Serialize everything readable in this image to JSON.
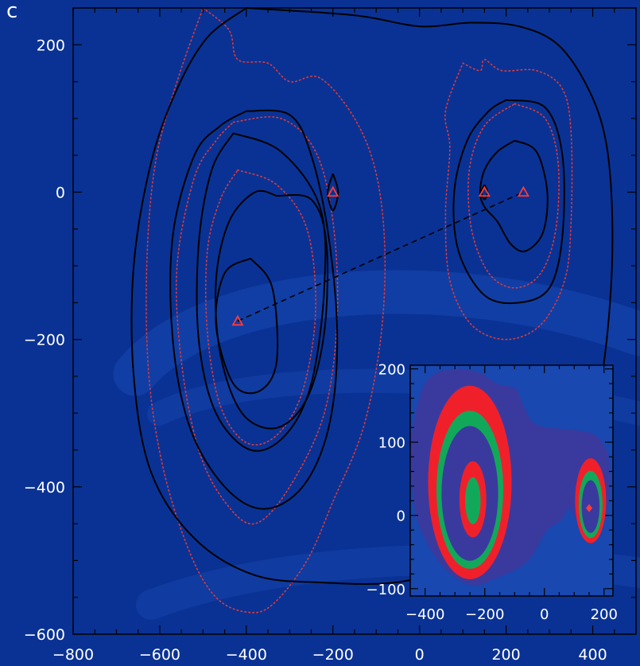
{
  "panel_letter": "c",
  "colors": {
    "background": "#0a3294",
    "swirl": "#1848b0",
    "contour_solid": "#000000",
    "contour_dotted": "#e03a3a",
    "marker": "#ff3b3b",
    "inset_bg": "#1848b0",
    "inset_outer": "#3a3a9e",
    "inset_red": "#f0202a",
    "inset_green": "#12a85a"
  },
  "chart_data": [
    {
      "type": "contour",
      "xlim": [
        -800,
        500
      ],
      "ylim": [
        -600,
        250
      ],
      "x_ticks": [
        -800,
        -600,
        -400,
        -200,
        0,
        200,
        400
      ],
      "y_ticks": [
        -600,
        -400,
        -200,
        0,
        200
      ],
      "x_tick_labels": [
        "−800",
        "−600",
        "−400",
        "−200",
        "0",
        "200",
        "400"
      ],
      "y_tick_labels": [
        "−600",
        "−400",
        "−200",
        "0",
        "200"
      ],
      "markers": [
        {
          "shape": "triangle",
          "x": -420,
          "y": -175
        },
        {
          "shape": "triangle",
          "x": -200,
          "y": 0
        },
        {
          "shape": "triangle",
          "x": 150,
          "y": 0
        },
        {
          "shape": "triangle",
          "x": 240,
          "y": 0
        }
      ],
      "dashed_line": [
        [
          -420,
          -175
        ],
        [
          240,
          0
        ]
      ],
      "solid_contours": [
        [
          [
            -400,
            250
          ],
          [
            -150,
            240
          ],
          [
            0,
            225
          ],
          [
            120,
            230
          ],
          [
            230,
            225
          ],
          [
            320,
            200
          ],
          [
            390,
            140
          ],
          [
            430,
            70
          ],
          [
            445,
            -30
          ],
          [
            440,
            -150
          ],
          [
            415,
            -270
          ],
          [
            370,
            -360
          ],
          [
            300,
            -430
          ],
          [
            200,
            -480
          ],
          [
            90,
            -510
          ],
          [
            -60,
            -530
          ],
          [
            -220,
            -530
          ],
          [
            -380,
            -520
          ],
          [
            -520,
            -470
          ],
          [
            -620,
            -380
          ],
          [
            -660,
            -250
          ],
          [
            -660,
            -100
          ],
          [
            -620,
            40
          ],
          [
            -560,
            140
          ],
          [
            -490,
            210
          ],
          [
            -400,
            250
          ]
        ],
        [
          [
            -400,
            110
          ],
          [
            -300,
            105
          ],
          [
            -250,
            50
          ],
          [
            -210,
            -60
          ],
          [
            -190,
            -200
          ],
          [
            -210,
            -320
          ],
          [
            -270,
            -400
          ],
          [
            -360,
            -430
          ],
          [
            -450,
            -400
          ],
          [
            -530,
            -320
          ],
          [
            -570,
            -200
          ],
          [
            -570,
            -60
          ],
          [
            -520,
            50
          ],
          [
            -460,
            90
          ],
          [
            -400,
            110
          ]
        ],
        [
          [
            -430,
            80
          ],
          [
            -320,
            55
          ],
          [
            -230,
            -20
          ],
          [
            -220,
            -130
          ],
          [
            -250,
            -260
          ],
          [
            -310,
            -330
          ],
          [
            -390,
            -350
          ],
          [
            -470,
            -300
          ],
          [
            -510,
            -200
          ],
          [
            -510,
            -70
          ],
          [
            -480,
            30
          ],
          [
            -430,
            80
          ]
        ],
        [
          [
            -330,
            -5
          ],
          [
            -250,
            -10
          ],
          [
            -215,
            -70
          ],
          [
            -220,
            -190
          ],
          [
            -260,
            -280
          ],
          [
            -330,
            -320
          ],
          [
            -410,
            -300
          ],
          [
            -460,
            -220
          ],
          [
            -470,
            -120
          ],
          [
            -440,
            -40
          ],
          [
            -380,
            0
          ],
          [
            -330,
            -5
          ]
        ],
        [
          [
            -390,
            -90
          ],
          [
            -340,
            -130
          ],
          [
            -330,
            -230
          ],
          [
            -370,
            -270
          ],
          [
            -430,
            -260
          ],
          [
            -470,
            -180
          ],
          [
            -450,
            -110
          ],
          [
            -390,
            -90
          ]
        ],
        [
          [
            -200,
            25
          ],
          [
            -188,
            0
          ],
          [
            -200,
            -25
          ],
          [
            -212,
            0
          ],
          [
            -200,
            25
          ]
        ],
        [
          [
            200,
            125
          ],
          [
            290,
            115
          ],
          [
            330,
            50
          ],
          [
            330,
            -60
          ],
          [
            300,
            -130
          ],
          [
            230,
            -150
          ],
          [
            150,
            -140
          ],
          [
            90,
            -80
          ],
          [
            80,
            0
          ],
          [
            110,
            70
          ],
          [
            160,
            110
          ],
          [
            200,
            125
          ]
        ],
        [
          [
            220,
            70
          ],
          [
            270,
            55
          ],
          [
            295,
            0
          ],
          [
            285,
            -55
          ],
          [
            245,
            -80
          ],
          [
            210,
            -70
          ],
          [
            180,
            -40
          ],
          [
            150,
            -20
          ],
          [
            140,
            0
          ],
          [
            150,
            30
          ],
          [
            180,
            55
          ],
          [
            220,
            70
          ]
        ],
        [
          [
            150,
            10
          ],
          [
            157,
            0
          ],
          [
            150,
            -10
          ],
          [
            143,
            0
          ],
          [
            150,
            10
          ]
        ]
      ],
      "dotted_contours": [
        [
          [
            -500,
            250
          ],
          [
            -440,
            220
          ],
          [
            -420,
            180
          ],
          [
            -350,
            175
          ],
          [
            -300,
            150
          ],
          [
            -230,
            155
          ],
          [
            -150,
            100
          ],
          [
            -100,
            25
          ],
          [
            -80,
            -80
          ],
          [
            -90,
            -200
          ],
          [
            -130,
            -320
          ],
          [
            -200,
            -420
          ],
          [
            -260,
            -500
          ],
          [
            -340,
            -560
          ],
          [
            -400,
            -570
          ],
          [
            -470,
            -550
          ],
          [
            -530,
            -490
          ],
          [
            -590,
            -380
          ],
          [
            -625,
            -250
          ],
          [
            -630,
            -100
          ],
          [
            -610,
            40
          ],
          [
            -560,
            150
          ],
          [
            -500,
            250
          ]
        ],
        [
          [
            -430,
            95
          ],
          [
            -320,
            100
          ],
          [
            -240,
            55
          ],
          [
            -200,
            -40
          ],
          [
            -190,
            -170
          ],
          [
            -220,
            -300
          ],
          [
            -300,
            -400
          ],
          [
            -380,
            -450
          ],
          [
            -450,
            -420
          ],
          [
            -510,
            -350
          ],
          [
            -550,
            -230
          ],
          [
            -560,
            -100
          ],
          [
            -520,
            20
          ],
          [
            -470,
            70
          ],
          [
            -430,
            95
          ]
        ],
        [
          [
            -420,
            30
          ],
          [
            -330,
            10
          ],
          [
            -260,
            -50
          ],
          [
            -240,
            -160
          ],
          [
            -270,
            -270
          ],
          [
            -330,
            -330
          ],
          [
            -400,
            -340
          ],
          [
            -460,
            -290
          ],
          [
            -490,
            -190
          ],
          [
            -490,
            -80
          ],
          [
            -460,
            -10
          ],
          [
            -420,
            30
          ]
        ],
        [
          [
            100,
            175
          ],
          [
            140,
            165
          ],
          [
            150,
            180
          ],
          [
            190,
            165
          ],
          [
            270,
            165
          ],
          [
            330,
            140
          ],
          [
            350,
            80
          ],
          [
            350,
            -40
          ],
          [
            335,
            -120
          ],
          [
            280,
            -180
          ],
          [
            200,
            -200
          ],
          [
            120,
            -180
          ],
          [
            70,
            -120
          ],
          [
            60,
            -30
          ],
          [
            70,
            60
          ],
          [
            60,
            110
          ],
          [
            100,
            175
          ]
        ],
        [
          [
            220,
            120
          ],
          [
            290,
            100
          ],
          [
            320,
            40
          ],
          [
            315,
            -50
          ],
          [
            280,
            -110
          ],
          [
            220,
            -130
          ],
          [
            160,
            -110
          ],
          [
            120,
            -50
          ],
          [
            115,
            30
          ],
          [
            150,
            90
          ],
          [
            220,
            120
          ]
        ]
      ]
    },
    {
      "type": "filled_contour_inset",
      "xlim": [
        -450,
        230
      ],
      "ylim": [
        -110,
        205
      ],
      "x_ticks": [
        -400,
        -200,
        0,
        200
      ],
      "y_ticks": [
        -100,
        0,
        100,
        200
      ],
      "x_tick_labels": [
        "−400",
        "−200",
        "0",
        "200"
      ],
      "y_tick_labels": [
        "−100",
        "0",
        "100",
        "200"
      ],
      "marker": {
        "shape": "diamond",
        "x": 150,
        "y": 10
      }
    }
  ]
}
